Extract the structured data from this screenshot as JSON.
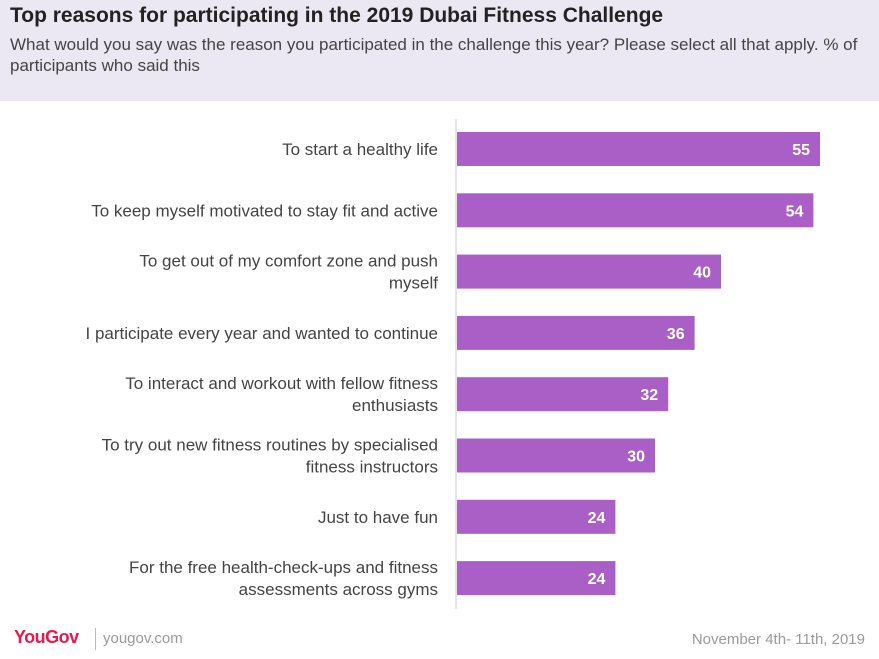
{
  "header": {
    "title": "Top reasons for participating in the 2019 Dubai Fitness Challenge",
    "subtitle": "What would you say was the reason you participated in the challenge this year? Please select all that apply. % of participants who said this"
  },
  "chart_data": {
    "type": "bar",
    "orientation": "horizontal",
    "categories": [
      [
        "To start a healthy life"
      ],
      [
        "To keep myself motivated to stay fit and active"
      ],
      [
        "To get out of my comfort zone and push",
        "myself"
      ],
      [
        "I participate every year and wanted to continue"
      ],
      [
        "To interact and workout with fellow fitness",
        "enthusiasts"
      ],
      [
        "To try out new fitness routines by specialised",
        "fitness instructors"
      ],
      [
        "Just to have fun"
      ],
      [
        "For the free health-check-ups and fitness",
        "assessments across gyms"
      ]
    ],
    "values": [
      55,
      54,
      40,
      36,
      32,
      30,
      24,
      24
    ],
    "bar_color": "#a95fc5",
    "label_color": "#ffffff",
    "grid": false,
    "legend": "none"
  },
  "footer": {
    "brand": "YouGov",
    "site": "yougov.com",
    "date": "November 4th- 11th, 2019"
  }
}
